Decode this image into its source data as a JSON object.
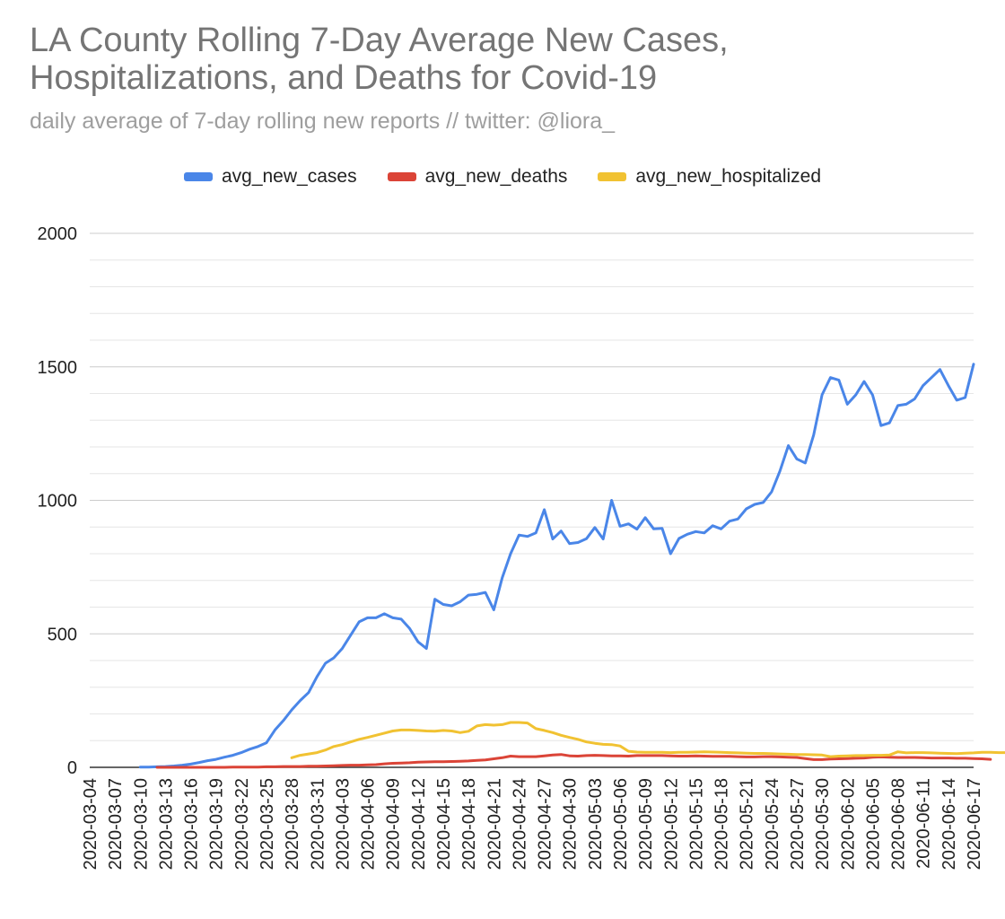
{
  "chart_data": {
    "type": "line",
    "title": "LA County Rolling 7-Day Average New Cases, Hospitalizations, and Deaths for Covid-19",
    "subtitle": "daily average of 7-day rolling new reports // twitter: @liora_",
    "xlabel": "",
    "ylabel": "",
    "ylim": [
      0,
      2000
    ],
    "y_ticks": [
      0,
      500,
      1000,
      1500,
      2000
    ],
    "grid": true,
    "legend_position": "top-center",
    "x_tick_labels": [
      "2020-03-04",
      "2020-03-07",
      "2020-03-10",
      "2020-03-13",
      "2020-03-16",
      "2020-03-19",
      "2020-03-22",
      "2020-03-25",
      "2020-03-28",
      "2020-03-31",
      "2020-04-03",
      "2020-04-06",
      "2020-04-09",
      "2020-04-12",
      "2020-04-15",
      "2020-04-18",
      "2020-04-21",
      "2020-04-24",
      "2020-04-27",
      "2020-04-30",
      "2020-05-03",
      "2020-05-06",
      "2020-05-09",
      "2020-05-12",
      "2020-05-15",
      "2020-05-18",
      "2020-05-21",
      "2020-05-24",
      "2020-05-27",
      "2020-05-30",
      "2020-06-02",
      "2020-06-05",
      "2020-06-08",
      "2020-06-11",
      "2020-06-14",
      "2020-06-17"
    ],
    "x_start": "2020-03-04",
    "x_end": "2020-06-17",
    "series": [
      {
        "name": "avg_new_cases",
        "color": "#4a86e8",
        "start_day": 6,
        "values": [
          1,
          1,
          2,
          3,
          5,
          8,
          12,
          18,
          25,
          30,
          38,
          45,
          55,
          68,
          78,
          92,
          140,
          175,
          215,
          250,
          280,
          340,
          390,
          410,
          445,
          495,
          545,
          560,
          560,
          575,
          560,
          555,
          520,
          470,
          445,
          630,
          610,
          605,
          620,
          645,
          648,
          655,
          590,
          710,
          800,
          870,
          865,
          878,
          965,
          855,
          885,
          838,
          842,
          856,
          898,
          855,
          1000,
          903,
          912,
          892,
          935,
          893,
          895,
          800,
          857,
          873,
          883,
          878,
          905,
          893,
          922,
          930,
          968,
          985,
          992,
          1032,
          1110,
          1205,
          1155,
          1140,
          1245,
          1395,
          1460,
          1450,
          1360,
          1395,
          1445,
          1395,
          1280,
          1290,
          1355,
          1360,
          1380,
          1430,
          1460,
          1490,
          1430,
          1375,
          1385,
          1510
        ]
      },
      {
        "name": "avg_new_deaths",
        "color": "#db4437",
        "start_day": 8,
        "values": [
          0,
          0,
          0,
          0,
          0,
          0,
          0,
          0,
          0,
          1,
          1,
          1,
          1,
          2,
          2,
          3,
          3,
          3,
          4,
          4,
          5,
          6,
          7,
          8,
          8,
          9,
          10,
          13,
          15,
          16,
          17,
          19,
          20,
          21,
          21,
          22,
          23,
          24,
          26,
          28,
          32,
          36,
          42,
          40,
          40,
          40,
          43,
          46,
          48,
          43,
          42,
          44,
          45,
          44,
          43,
          43,
          42,
          44,
          44,
          44,
          44,
          43,
          42,
          42,
          43,
          42,
          41,
          41,
          41,
          40,
          39,
          39,
          40,
          40,
          39,
          38,
          37,
          33,
          29,
          29,
          31,
          32,
          33,
          34,
          35,
          38,
          39,
          38,
          37,
          37,
          37,
          36,
          35,
          35,
          35,
          34,
          34,
          33,
          32,
          30
        ]
      },
      {
        "name": "avg_new_hospitalized",
        "color": "#f1c232",
        "start_day": 24,
        "values": [
          36,
          45,
          50,
          55,
          65,
          78,
          85,
          95,
          105,
          112,
          120,
          128,
          136,
          140,
          140,
          138,
          136,
          135,
          138,
          136,
          130,
          135,
          155,
          160,
          158,
          160,
          168,
          168,
          166,
          145,
          138,
          130,
          120,
          112,
          105,
          95,
          90,
          86,
          85,
          80,
          60,
          57,
          56,
          56,
          56,
          55,
          56,
          56,
          57,
          58,
          57,
          56,
          55,
          54,
          53,
          52,
          52,
          51,
          50,
          49,
          48,
          48,
          47,
          46,
          40,
          42,
          43,
          44,
          44,
          45,
          45,
          46,
          58,
          54,
          55,
          55,
          54,
          53,
          52,
          51,
          53,
          54,
          56,
          56,
          55,
          55,
          54,
          53
        ]
      }
    ]
  }
}
